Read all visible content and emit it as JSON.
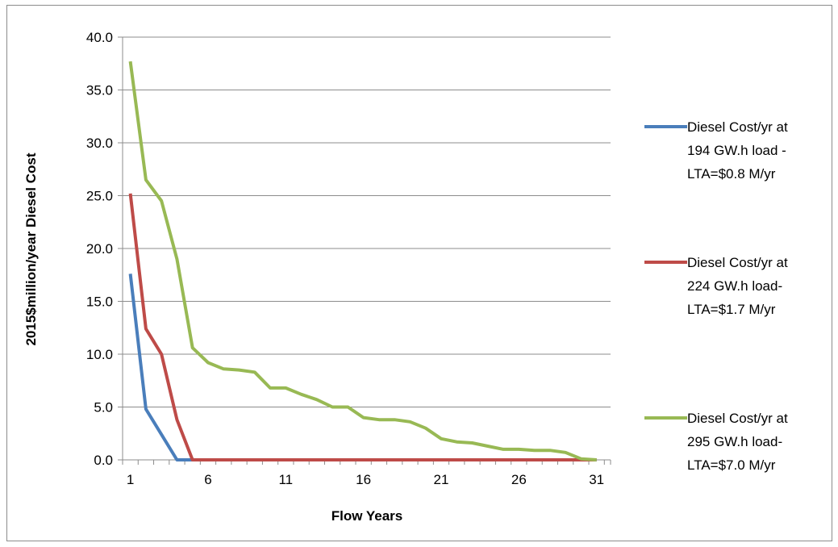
{
  "chart_data": {
    "type": "line",
    "title": "",
    "xlabel": "Flow Years",
    "ylabel": "2015$million/year Diesel Cost",
    "xlim": [
      1,
      31
    ],
    "ylim": [
      0,
      40
    ],
    "x_ticks": [
      "1",
      "6",
      "11",
      "16",
      "21",
      "26",
      "31"
    ],
    "y_ticks": [
      "0.0",
      "5.0",
      "10.0",
      "15.0",
      "20.0",
      "25.0",
      "30.0",
      "35.0",
      "40.0"
    ],
    "grid": "horizontal",
    "legend_position": "right",
    "x": [
      1,
      2,
      3,
      4,
      5,
      6,
      7,
      8,
      9,
      10,
      11,
      12,
      13,
      14,
      15,
      16,
      17,
      18,
      19,
      20,
      21,
      22,
      23,
      24,
      25,
      26,
      27,
      28,
      29,
      30,
      31
    ],
    "series": [
      {
        "name_lines": [
          "Diesel Cost/yr at",
          "194 GW.h load -",
          "LTA=$0.8 M/yr"
        ],
        "color": "#4a7ebb",
        "values": [
          17.6,
          4.8,
          2.4,
          0.0,
          0,
          0,
          0,
          0,
          0,
          0,
          0,
          0,
          0,
          0,
          0,
          0,
          0,
          0,
          0,
          0,
          0,
          0,
          0,
          0,
          0,
          0,
          0,
          0,
          0,
          0,
          0
        ]
      },
      {
        "name_lines": [
          "Diesel Cost/yr at",
          "224 GW.h load-",
          "LTA=$1.7 M/yr"
        ],
        "color": "#be4b48",
        "values": [
          25.2,
          12.4,
          10.0,
          3.8,
          0.0,
          0,
          0,
          0,
          0,
          0,
          0,
          0,
          0,
          0,
          0,
          0,
          0,
          0,
          0,
          0,
          0,
          0,
          0,
          0,
          0,
          0,
          0,
          0,
          0,
          0,
          0
        ]
      },
      {
        "name_lines": [
          "Diesel Cost/yr at",
          "295 GW.h load-",
          "LTA=$7.0 M/yr"
        ],
        "color": "#98b954",
        "values": [
          37.7,
          26.5,
          24.5,
          19.0,
          10.6,
          9.2,
          8.6,
          8.5,
          8.3,
          6.8,
          6.8,
          6.2,
          5.7,
          5.0,
          5.0,
          4.0,
          3.8,
          3.8,
          3.6,
          3.0,
          2.0,
          1.7,
          1.6,
          1.3,
          1.0,
          1.0,
          0.9,
          0.9,
          0.7,
          0.1,
          0.0
        ]
      }
    ]
  }
}
